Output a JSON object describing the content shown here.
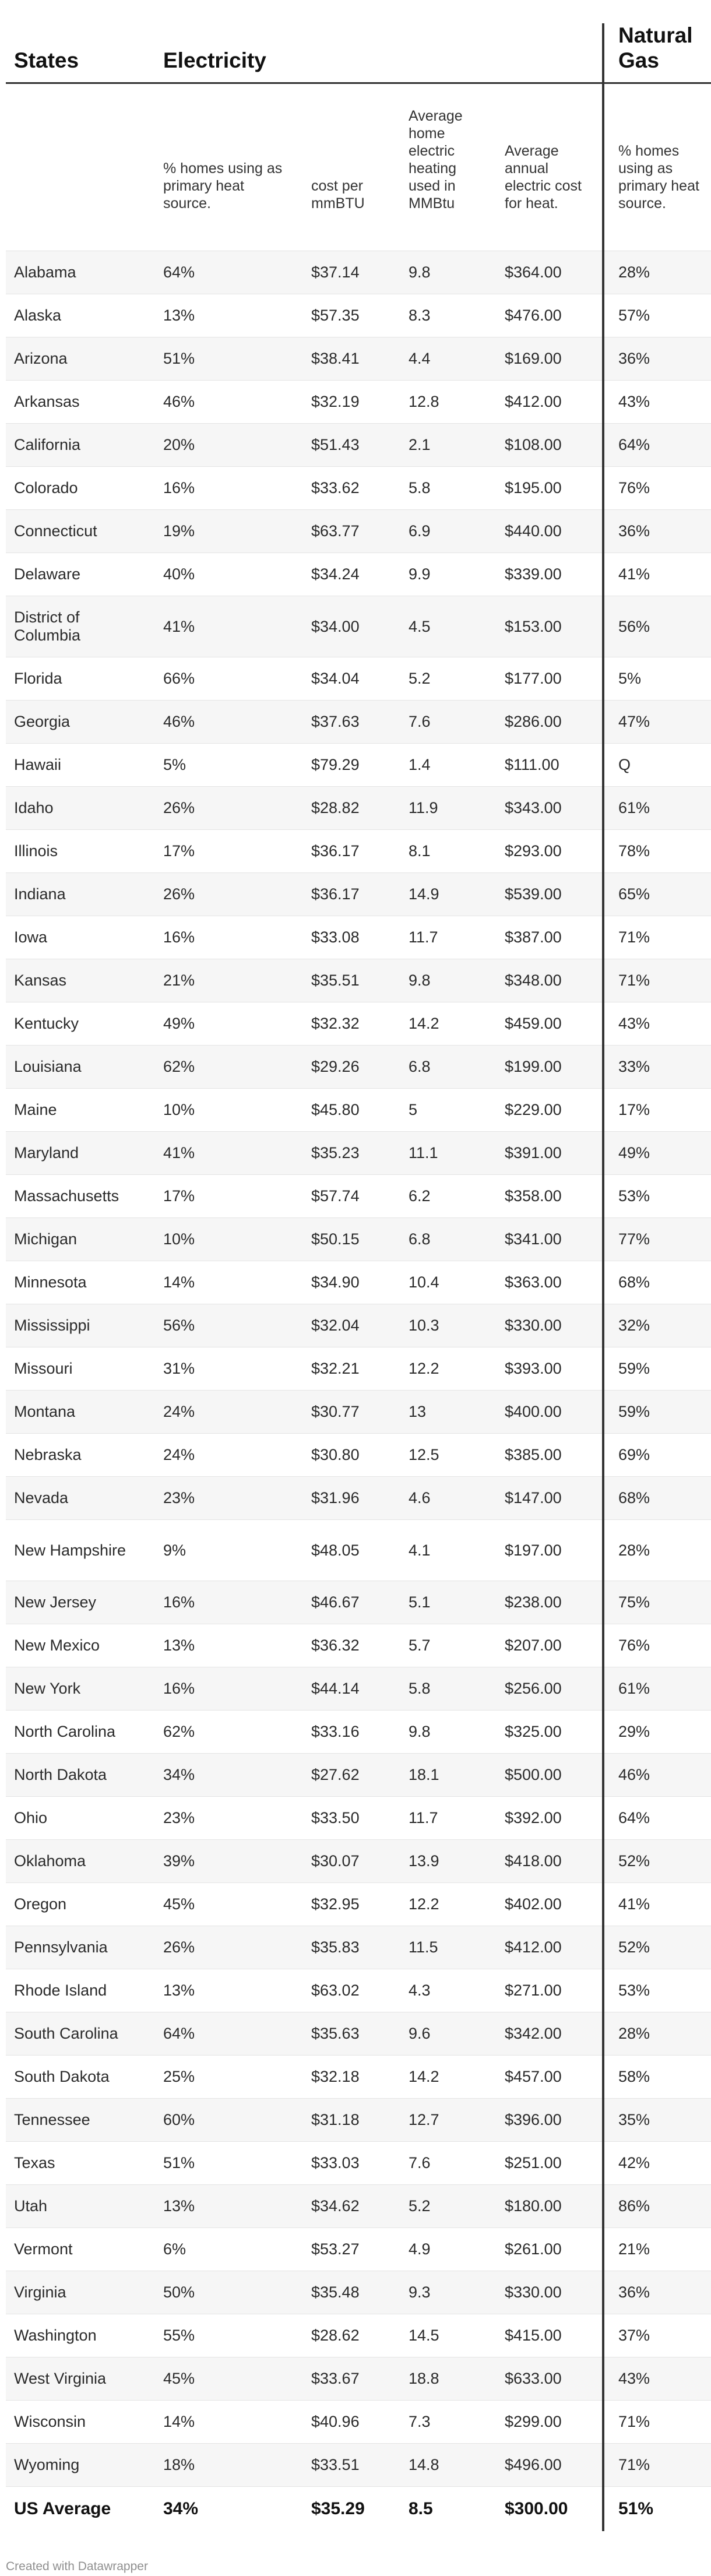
{
  "header": {
    "states": "States",
    "electricity": "Electricity",
    "natural_gas": "Natural Gas"
  },
  "subheader": {
    "elec_pct": "% homes using as primary heat source.",
    "elec_cost": "cost per mmBTU",
    "elec_avg_use": "Average home electric heating used in MMBtu",
    "elec_annual": "Average annual electric cost for heat.",
    "gas_pct": "% homes using as primary heat source."
  },
  "rows": [
    [
      "Alabama",
      "64%",
      "$37.14",
      "9.8",
      "$364.00",
      "28%"
    ],
    [
      "Alaska",
      "13%",
      "$57.35",
      "8.3",
      "$476.00",
      "57%"
    ],
    [
      "Arizona",
      "51%",
      "$38.41",
      "4.4",
      "$169.00",
      "36%"
    ],
    [
      "Arkansas",
      "46%",
      "$32.19",
      "12.8",
      "$412.00",
      "43%"
    ],
    [
      "California",
      "20%",
      "$51.43",
      "2.1",
      "$108.00",
      "64%"
    ],
    [
      "Colorado",
      "16%",
      "$33.62",
      "5.8",
      "$195.00",
      "76%"
    ],
    [
      "Connecticut",
      "19%",
      "$63.77",
      "6.9",
      "$440.00",
      "36%"
    ],
    [
      "Delaware",
      "40%",
      "$34.24",
      "9.9",
      "$339.00",
      "41%"
    ],
    [
      "District of Columbia",
      "41%",
      "$34.00",
      "4.5",
      "$153.00",
      "56%"
    ],
    [
      "Florida",
      "66%",
      "$34.04",
      "5.2",
      "$177.00",
      "5%"
    ],
    [
      "Georgia",
      "46%",
      "$37.63",
      "7.6",
      "$286.00",
      "47%"
    ],
    [
      "Hawaii",
      "5%",
      "$79.29",
      "1.4",
      "$111.00",
      "Q"
    ],
    [
      "Idaho",
      "26%",
      "$28.82",
      "11.9",
      "$343.00",
      "61%"
    ],
    [
      "Illinois",
      "17%",
      "$36.17",
      "8.1",
      "$293.00",
      "78%"
    ],
    [
      "Indiana",
      "26%",
      "$36.17",
      "14.9",
      "$539.00",
      "65%"
    ],
    [
      "Iowa",
      "16%",
      "$33.08",
      "11.7",
      "$387.00",
      "71%"
    ],
    [
      "Kansas",
      "21%",
      "$35.51",
      "9.8",
      "$348.00",
      "71%"
    ],
    [
      "Kentucky",
      "49%",
      "$32.32",
      "14.2",
      "$459.00",
      "43%"
    ],
    [
      "Louisiana",
      "62%",
      "$29.26",
      "6.8",
      "$199.00",
      "33%"
    ],
    [
      "Maine",
      "10%",
      "$45.80",
      "5",
      "$229.00",
      "17%"
    ],
    [
      "Maryland",
      "41%",
      "$35.23",
      "11.1",
      "$391.00",
      "49%"
    ],
    [
      "Massachusetts",
      "17%",
      "$57.74",
      "6.2",
      "$358.00",
      "53%"
    ],
    [
      "Michigan",
      "10%",
      "$50.15",
      "6.8",
      "$341.00",
      "77%"
    ],
    [
      "Minnesota",
      "14%",
      "$34.90",
      "10.4",
      "$363.00",
      "68%"
    ],
    [
      "Mississippi",
      "56%",
      "$32.04",
      "10.3",
      "$330.00",
      "32%"
    ],
    [
      "Missouri",
      "31%",
      "$32.21",
      "12.2",
      "$393.00",
      "59%"
    ],
    [
      "Montana",
      "24%",
      "$30.77",
      "13",
      "$400.00",
      "59%"
    ],
    [
      "Nebraska",
      "24%",
      "$30.80",
      "12.5",
      "$385.00",
      "69%"
    ],
    [
      "Nevada",
      "23%",
      "$31.96",
      "4.6",
      "$147.00",
      "68%"
    ],
    [
      "New Hampshire",
      "9%",
      "$48.05",
      "4.1",
      "$197.00",
      "28%"
    ],
    [
      "New Jersey",
      "16%",
      "$46.67",
      "5.1",
      "$238.00",
      "75%"
    ],
    [
      "New Mexico",
      "13%",
      "$36.32",
      "5.7",
      "$207.00",
      "76%"
    ],
    [
      "New York",
      "16%",
      "$44.14",
      "5.8",
      "$256.00",
      "61%"
    ],
    [
      "North Carolina",
      "62%",
      "$33.16",
      "9.8",
      "$325.00",
      "29%"
    ],
    [
      "North Dakota",
      "34%",
      "$27.62",
      "18.1",
      "$500.00",
      "46%"
    ],
    [
      "Ohio",
      "23%",
      "$33.50",
      "11.7",
      "$392.00",
      "64%"
    ],
    [
      "Oklahoma",
      "39%",
      "$30.07",
      "13.9",
      "$418.00",
      "52%"
    ],
    [
      "Oregon",
      "45%",
      "$32.95",
      "12.2",
      "$402.00",
      "41%"
    ],
    [
      "Pennsylvania",
      "26%",
      "$35.83",
      "11.5",
      "$412.00",
      "52%"
    ],
    [
      "Rhode Island",
      "13%",
      "$63.02",
      "4.3",
      "$271.00",
      "53%"
    ],
    [
      "South Carolina",
      "64%",
      "$35.63",
      "9.6",
      "$342.00",
      "28%"
    ],
    [
      "South Dakota",
      "25%",
      "$32.18",
      "14.2",
      "$457.00",
      "58%"
    ],
    [
      "Tennessee",
      "60%",
      "$31.18",
      "12.7",
      "$396.00",
      "35%"
    ],
    [
      "Texas",
      "51%",
      "$33.03",
      "7.6",
      "$251.00",
      "42%"
    ],
    [
      "Utah",
      "13%",
      "$34.62",
      "5.2",
      "$180.00",
      "86%"
    ],
    [
      "Vermont",
      "6%",
      "$53.27",
      "4.9",
      "$261.00",
      "21%"
    ],
    [
      "Virginia",
      "50%",
      "$35.48",
      "9.3",
      "$330.00",
      "36%"
    ],
    [
      "Washington",
      "55%",
      "$28.62",
      "14.5",
      "$415.00",
      "37%"
    ],
    [
      "West Virginia",
      "45%",
      "$33.67",
      "18.8",
      "$633.00",
      "43%"
    ],
    [
      "Wisconsin",
      "14%",
      "$40.96",
      "7.3",
      "$299.00",
      "71%"
    ],
    [
      "Wyoming",
      "18%",
      "$33.51",
      "14.8",
      "$496.00",
      "71%"
    ]
  ],
  "average": [
    "US Average",
    "34%",
    "$35.29",
    "8.5",
    "$300.00",
    "51%"
  ],
  "footer": {
    "credit": "Created with Datawrapper"
  },
  "colors": {
    "divider": "#333333",
    "row_shade": "#f6f6f6",
    "credit_text": "#8f8f8f"
  }
}
